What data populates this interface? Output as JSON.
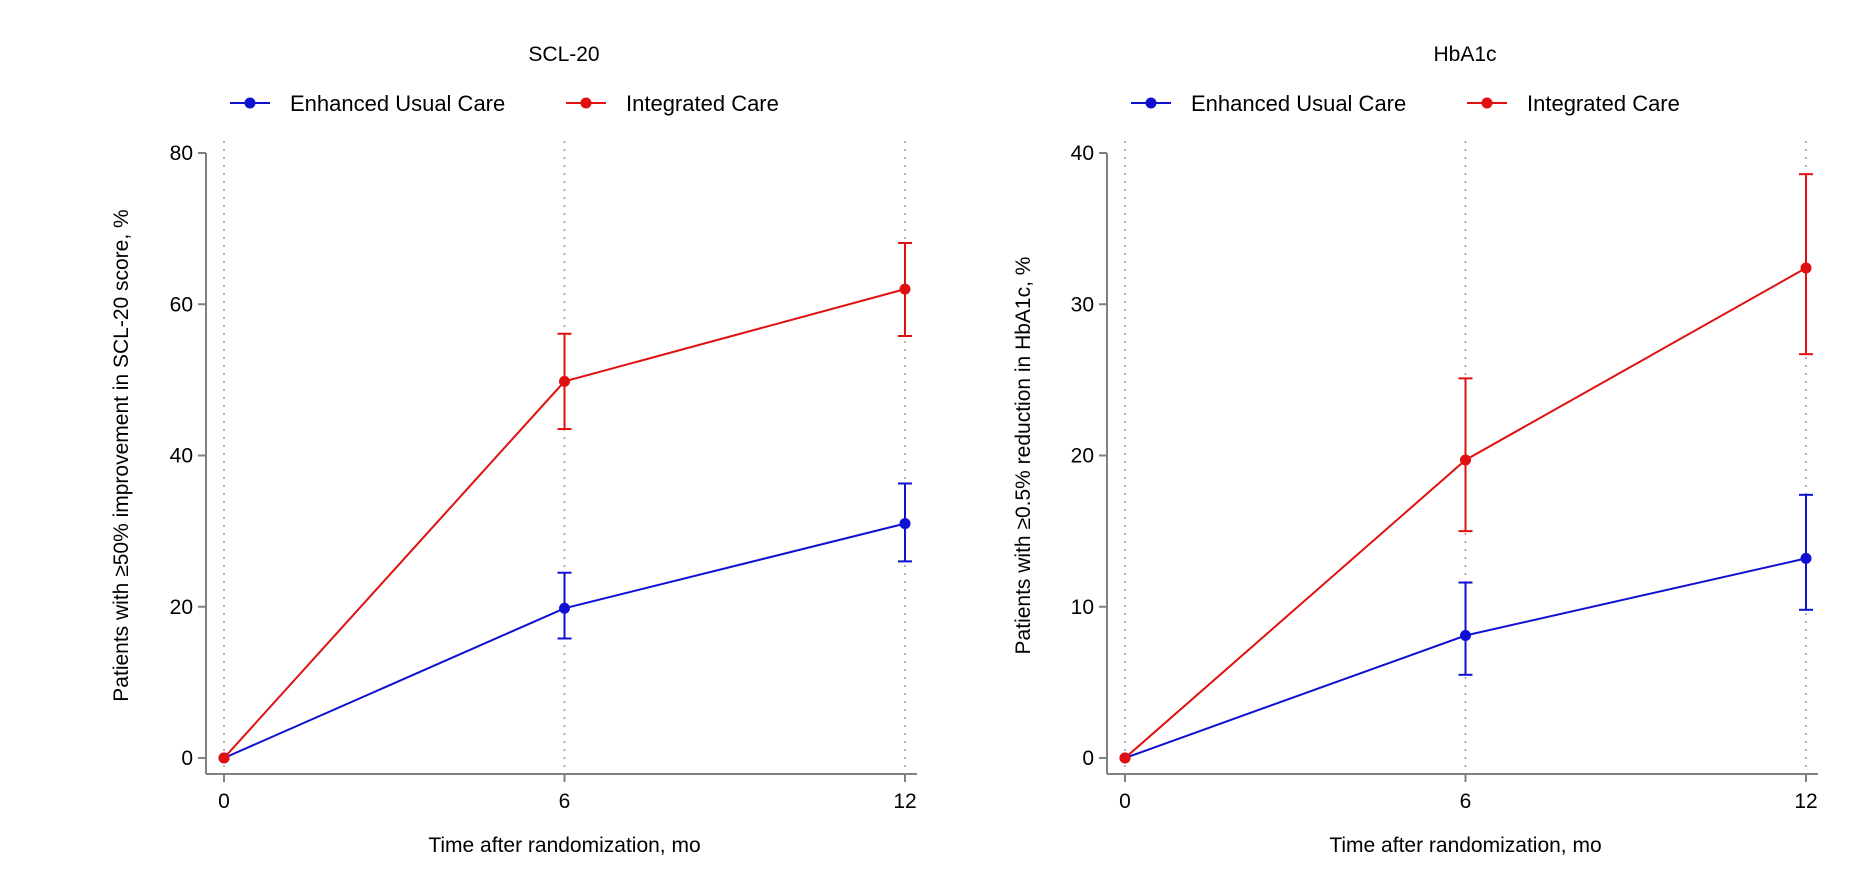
{
  "chart_data": [
    {
      "type": "line",
      "title": "SCL-20",
      "xlabel": "Time after randomization, mo",
      "ylabel": "Patients with ≥50% improvement in SCL-20 score, %",
      "x": [
        0,
        6,
        12
      ],
      "xticks": [
        0,
        6,
        12
      ],
      "xlim": [
        0,
        12
      ],
      "yticks": [
        0,
        20,
        40,
        60,
        80
      ],
      "ylim": [
        0,
        80
      ],
      "grid": "vertical dotted at x ticks",
      "legend_position": "top",
      "series": [
        {
          "name": "Enhanced Usual Care",
          "color": "#1010d0",
          "values": [
            0,
            19.8,
            31.0
          ],
          "error_low": [
            0,
            15.8,
            26.0
          ],
          "error_high": [
            0,
            24.5,
            36.3
          ]
        },
        {
          "name": "Integrated Care",
          "color": "#e01010",
          "values": [
            0,
            49.8,
            62.0
          ],
          "error_low": [
            0,
            43.5,
            55.8
          ],
          "error_high": [
            0,
            56.1,
            68.1
          ]
        }
      ]
    },
    {
      "type": "line",
      "title": "HbA1c",
      "xlabel": "Time after randomization, mo",
      "ylabel": "Patients with ≥0.5% reduction in HbA1c, %",
      "x": [
        0,
        6,
        12
      ],
      "xticks": [
        0,
        6,
        12
      ],
      "xlim": [
        0,
        12
      ],
      "yticks": [
        0,
        10,
        20,
        30,
        40
      ],
      "ylim": [
        0,
        40
      ],
      "grid": "vertical dotted at x ticks",
      "legend_position": "top",
      "series": [
        {
          "name": "Enhanced Usual Care",
          "color": "#1010d0",
          "values": [
            0,
            8.1,
            13.2
          ],
          "error_low": [
            0,
            5.5,
            9.8
          ],
          "error_high": [
            0,
            11.6,
            17.4
          ]
        },
        {
          "name": "Integrated Care",
          "color": "#e01010",
          "values": [
            0,
            19.7,
            32.4
          ],
          "error_low": [
            0,
            15.0,
            26.7
          ],
          "error_high": [
            0,
            25.1,
            38.6
          ]
        }
      ]
    }
  ]
}
